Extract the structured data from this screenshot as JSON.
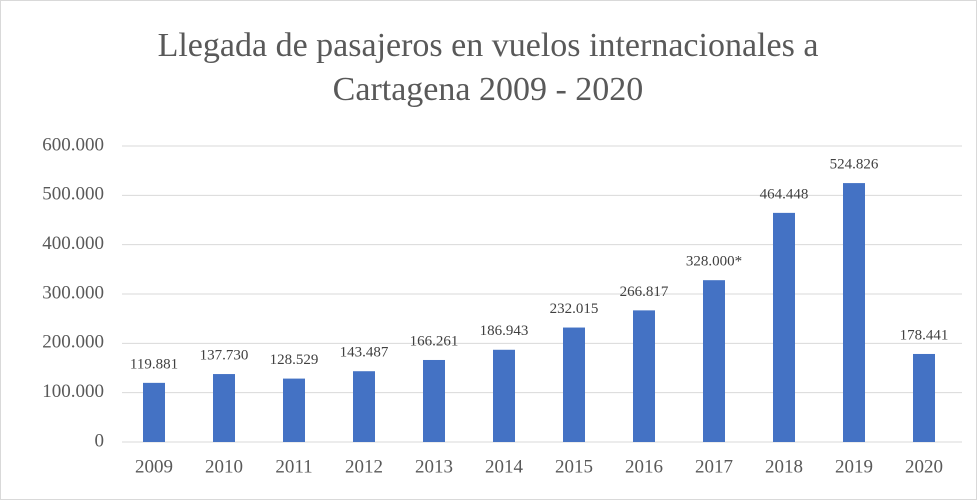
{
  "chart_data": {
    "type": "bar",
    "title": "Llegada de pasajeros en vuelos internacionales a Cartagena 2009 - 2020",
    "categories": [
      "2009",
      "2010",
      "2011",
      "2012",
      "2013",
      "2014",
      "2015",
      "2016",
      "2017",
      "2018",
      "2019",
      "2020"
    ],
    "values": [
      119881,
      137730,
      128529,
      143487,
      166261,
      186943,
      232015,
      266817,
      328000,
      464448,
      524826,
      178441
    ],
    "value_labels": [
      "119.881",
      "137.730",
      "128.529",
      "143.487",
      "166.261",
      "186.943",
      "232.015",
      "266.817",
      "328.000*",
      "464.448",
      "524.826",
      "178.441"
    ],
    "color": "#4472c4",
    "ylim": [
      0,
      600000
    ],
    "yticks": [
      0,
      {
        "value": 100000,
        "label": "100.000"
      },
      {
        "value": 200000,
        "label": "200.000"
      },
      {
        "value": 300000,
        "label": "300.000"
      },
      {
        "value": 400000,
        "label": "400.000"
      },
      {
        "value": 500000,
        "label": "500.000"
      },
      {
        "value": 600000,
        "label": "600.000"
      }
    ],
    "grid": true
  }
}
